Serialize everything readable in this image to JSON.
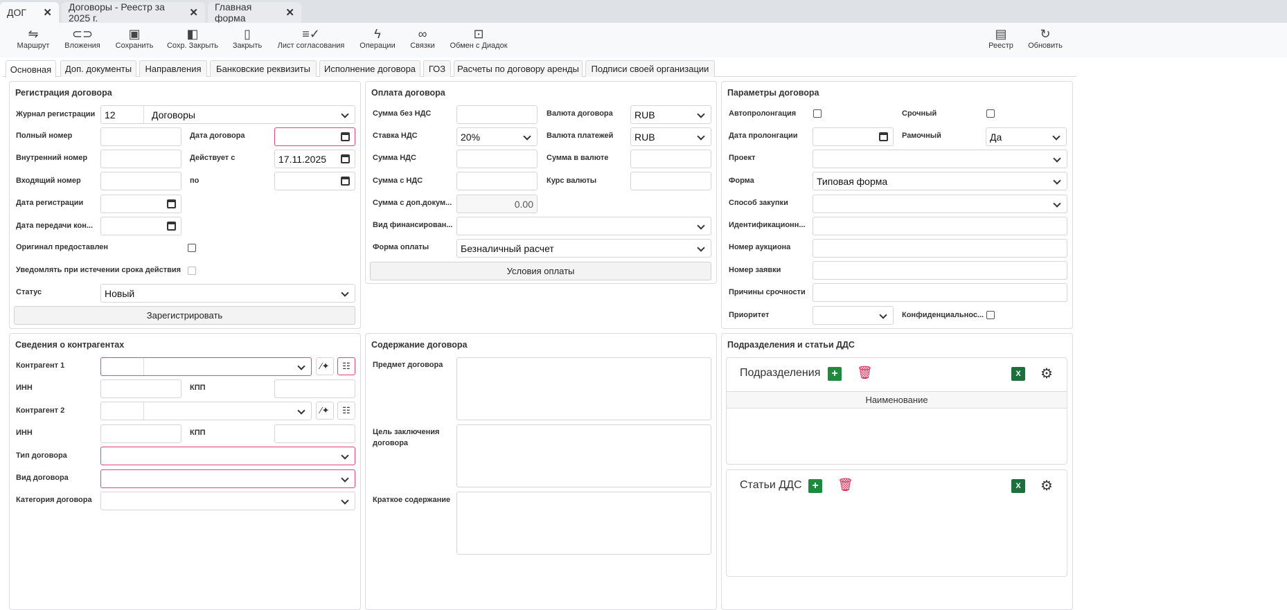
{
  "window_tabs": [
    {
      "label": "ДОГ"
    },
    {
      "label": "Договоры - Реестр за 2025 г."
    },
    {
      "label": "Главная форма"
    }
  ],
  "toolbar": {
    "left": [
      {
        "label": "Маршрут",
        "icon": "route-icon"
      },
      {
        "label": "Вложения",
        "icon": "paperclip-icon"
      },
      {
        "label": "Сохранить",
        "icon": "save-icon"
      },
      {
        "label": "Сохр. Закрыть",
        "icon": "save-close-icon"
      },
      {
        "label": "Закрыть",
        "icon": "door-icon"
      },
      {
        "label": "Лист согласования",
        "icon": "checklist-icon"
      },
      {
        "label": "Операции",
        "icon": "lightning-icon"
      },
      {
        "label": "Связки",
        "icon": "link-icon"
      },
      {
        "label": "Обмен с Диадок",
        "icon": "archive-icon"
      }
    ],
    "right": [
      {
        "label": "Реестр",
        "icon": "register-icon"
      },
      {
        "label": "Обновить",
        "icon": "refresh-icon"
      }
    ]
  },
  "form_tabs": [
    {
      "label": "Основная",
      "active": true
    },
    {
      "label": "Доп. документы"
    },
    {
      "label": "Направления"
    },
    {
      "label": "Банковские реквизиты"
    },
    {
      "label": "Исполнение договора"
    },
    {
      "label": "ГОЗ"
    },
    {
      "label": "Расчеты по договору аренды"
    },
    {
      "label": "Подписи своей организации"
    }
  ],
  "registration": {
    "title": "Регистрация договора",
    "journal_label": "Журнал регистрации",
    "journal_code": "12",
    "journal_name": "Договоры",
    "full_number_label": "Полный номер",
    "contract_date_label": "Дата договора",
    "internal_number_label": "Внутренний номер",
    "valid_from_label": "Действует с",
    "valid_from": "17.11.2025",
    "incoming_number_label": "Входящий номер",
    "valid_to_label": "по",
    "reg_date_label": "Дата регистрации",
    "transfer_date_label": "Дата передачи кон...",
    "original_label": "Оригинал предоставлен",
    "notify_label": "Уведомлять при истечении срока действия",
    "status_label": "Статус",
    "status": "Новый",
    "register_button": "Зарегистрировать"
  },
  "payment": {
    "title": "Оплата договора",
    "sum_no_vat_label": "Сумма без НДС",
    "currency_label": "Валюта договора",
    "currency": "RUB",
    "vat_rate_label": "Ставка НДС",
    "vat_rate": "20%",
    "pay_currency_label": "Валюта платежей",
    "pay_currency": "RUB",
    "vat_sum_label": "Сумма НДС",
    "sum_in_currency_label": "Сумма в валюте",
    "sum_with_vat_label": "Сумма с НДС",
    "rate_label": "Курс валюты",
    "sum_with_docs_label": "Сумма с доп.докум...",
    "sum_with_docs": "0.00",
    "financing_label": "Вид финансирован...",
    "pay_form_label": "Форма оплаты",
    "pay_form": "Безналичный расчет",
    "terms_button": "Условия оплаты"
  },
  "params": {
    "title": "Параметры договора",
    "autoprolong_label": "Автопролонгация",
    "urgent_label": "Срочный",
    "prolong_date_label": "Дата пролонгации",
    "frame_label": "Рамочный",
    "frame": "Да",
    "project_label": "Проект",
    "form_label": "Форма",
    "form": "Типовая форма",
    "purchase_label": "Способ закупки",
    "ident_label": "Идентификационн...",
    "auction_label": "Номер аукциона",
    "request_label": "Номер заявки",
    "urgency_reason_label": "Причины срочности",
    "priority_label": "Приоритет",
    "confidential_label": "Конфиденциальнос..."
  },
  "counterparties": {
    "title": "Сведения о контрагентах",
    "cp1_label": "Контрагент 1",
    "inn_label": "ИНН",
    "kpp_label": "КПП",
    "cp2_label": "Контрагент 2",
    "type_label": "Тип договора",
    "kind_label": "Вид договора",
    "category_label": "Категория договора"
  },
  "content": {
    "title": "Содержание договора",
    "subject_label": "Предмет договора",
    "goal_label": "Цель заключения договора",
    "summary_label": "Краткое содержание"
  },
  "dds": {
    "title": "Подразделения и статьи ДДС",
    "departments_title": "Подразделения",
    "name_column": "Наименование",
    "articles_title": "Статьи ДДС",
    "excel_glyph": "X"
  },
  "colors": {
    "required_border": "#e5447a",
    "add_green": "#1e8a3c",
    "delete_red": "#d81e4a"
  }
}
